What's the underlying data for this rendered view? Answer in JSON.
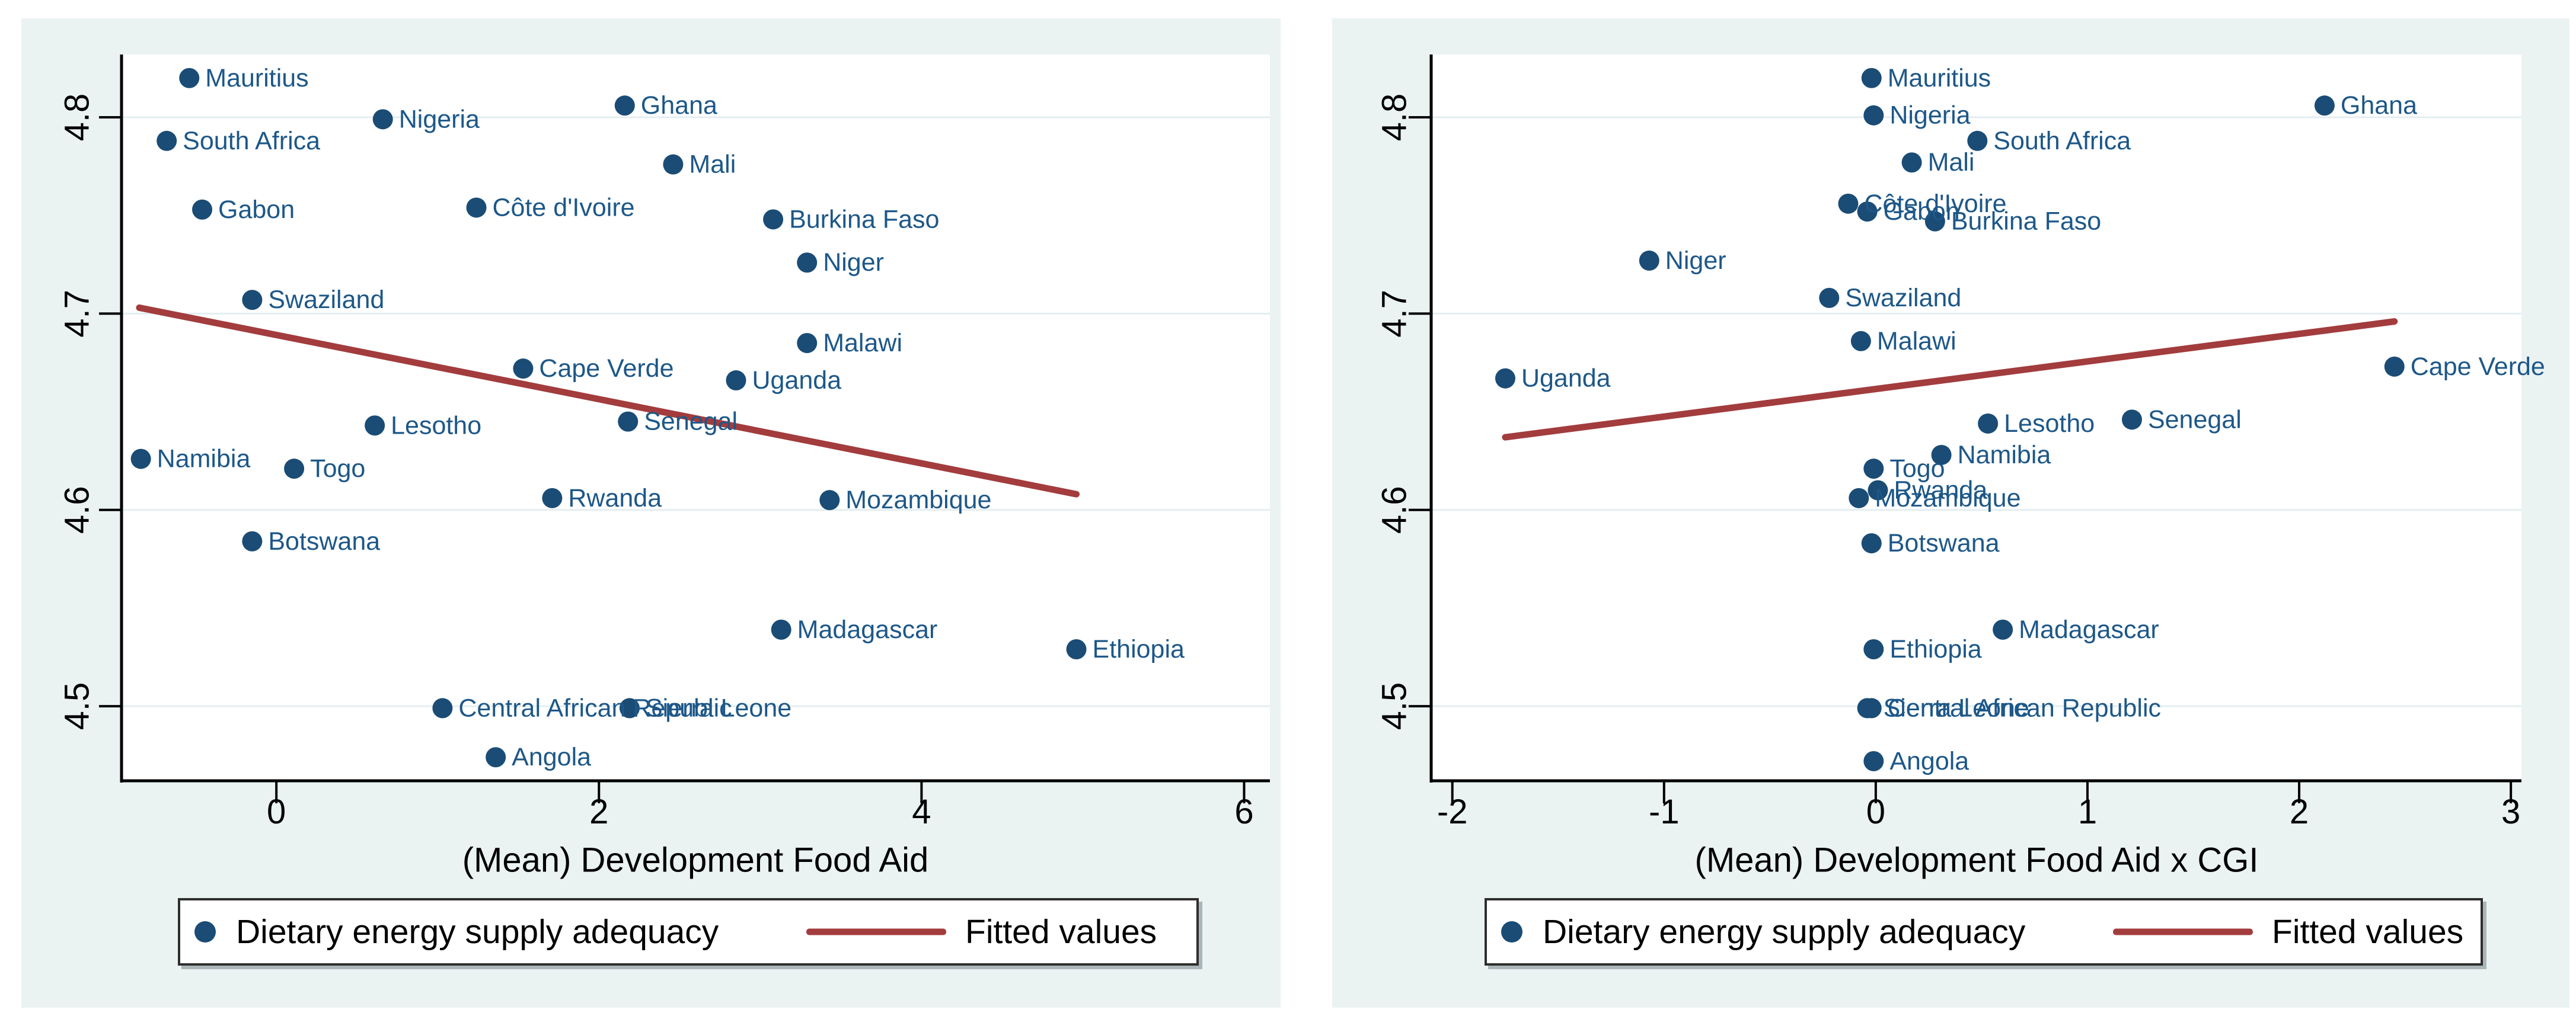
{
  "style": {
    "page_background": "#ffffff",
    "panel_background": "#eaf2f2",
    "plot_background": "#ffffff",
    "grid_color": "#e4eef1",
    "axis_color": "#000000",
    "tick_text_color": "#000000",
    "marker_color": "#1a4c75",
    "point_label_color": "#1d5788",
    "fit_line_color": "#a33c3d"
  },
  "legend": {
    "marker_label": "Dietary energy supply adequacy",
    "line_label": "Fitted values"
  },
  "chart_data": [
    {
      "type": "scatter",
      "title": "",
      "xlabel": "(Mean) Development Food Aid",
      "ylabel": "",
      "xlim": [
        -0.96,
        6.16
      ],
      "ylim": [
        4.462,
        4.832
      ],
      "xtick_values": [
        0,
        2,
        4,
        6
      ],
      "xtick_labels": [
        "0",
        "2",
        "4",
        "6"
      ],
      "ytick_values": [
        4.5,
        4.6,
        4.7,
        4.8
      ],
      "ytick_labels": [
        "4.5",
        "4.6",
        "4.7",
        "4.8"
      ],
      "grid": true,
      "legend_position": "bottom",
      "series_name": "Dietary energy supply adequacy",
      "points": [
        {
          "label": "Mauritius",
          "x": -0.54,
          "y": 4.82
        },
        {
          "label": "Nigeria",
          "x": 0.66,
          "y": 4.799
        },
        {
          "label": "Ghana",
          "x": 2.16,
          "y": 4.806
        },
        {
          "label": "South Africa",
          "x": -0.68,
          "y": 4.788
        },
        {
          "label": "Mali",
          "x": 2.46,
          "y": 4.776
        },
        {
          "label": "Gabon",
          "x": -0.46,
          "y": 4.753
        },
        {
          "label": "Côte d'Ivoire",
          "x": 1.24,
          "y": 4.754
        },
        {
          "label": "Burkina Faso",
          "x": 3.08,
          "y": 4.748
        },
        {
          "label": "Niger",
          "x": 3.29,
          "y": 4.726
        },
        {
          "label": "Swaziland",
          "x": -0.15,
          "y": 4.707
        },
        {
          "label": "Malawi",
          "x": 3.29,
          "y": 4.685
        },
        {
          "label": "Cape Verde",
          "x": 1.53,
          "y": 4.672
        },
        {
          "label": "Uganda",
          "x": 2.85,
          "y": 4.666
        },
        {
          "label": "Lesotho",
          "x": 0.61,
          "y": 4.643
        },
        {
          "label": "Senegal",
          "x": 2.18,
          "y": 4.645
        },
        {
          "label": "Namibia",
          "x": -0.84,
          "y": 4.626
        },
        {
          "label": "Togo",
          "x": 0.11,
          "y": 4.621
        },
        {
          "label": "Rwanda",
          "x": 1.71,
          "y": 4.606
        },
        {
          "label": "Mozambique",
          "x": 3.43,
          "y": 4.605
        },
        {
          "label": "Botswana",
          "x": -0.15,
          "y": 4.584
        },
        {
          "label": "Madagascar",
          "x": 3.13,
          "y": 4.539
        },
        {
          "label": "Ethiopia",
          "x": 4.96,
          "y": 4.529
        },
        {
          "label": "Central African Republic",
          "x": 1.03,
          "y": 4.499
        },
        {
          "label": "Sierra Leone",
          "x": 2.19,
          "y": 4.499
        },
        {
          "label": "Angola",
          "x": 1.36,
          "y": 4.474
        }
      ],
      "fit_line": {
        "name": "Fitted values",
        "x1": -0.85,
        "y1": 4.703,
        "x2": 4.96,
        "y2": 4.608
      }
    },
    {
      "type": "scatter",
      "title": "",
      "xlabel": "(Mean) Development Food Aid x CGI",
      "ylabel": "",
      "xlim": [
        -2.1,
        3.05
      ],
      "ylim": [
        4.462,
        4.832
      ],
      "xtick_values": [
        -2,
        -1,
        0,
        1,
        2,
        3
      ],
      "xtick_labels": [
        "-2",
        "-1",
        "0",
        "1",
        "2",
        "3"
      ],
      "ytick_values": [
        4.5,
        4.6,
        4.7,
        4.8
      ],
      "ytick_labels": [
        "4.5",
        "4.6",
        "4.7",
        "4.8"
      ],
      "grid": true,
      "legend_position": "bottom",
      "series_name": "Dietary energy supply adequacy",
      "points": [
        {
          "label": "Mauritius",
          "x": -0.02,
          "y": 4.82
        },
        {
          "label": "Nigeria",
          "x": -0.01,
          "y": 4.801
        },
        {
          "label": "Ghana",
          "x": 2.12,
          "y": 4.806
        },
        {
          "label": "South Africa",
          "x": 0.48,
          "y": 4.788
        },
        {
          "label": "Mali",
          "x": 0.17,
          "y": 4.777
        },
        {
          "label": "Côte d'Ivoire",
          "x": -0.13,
          "y": 4.756
        },
        {
          "label": "Gabon",
          "x": -0.04,
          "y": 4.752
        },
        {
          "label": "Burkina Faso",
          "x": 0.28,
          "y": 4.747
        },
        {
          "label": "Niger",
          "x": -1.07,
          "y": 4.727
        },
        {
          "label": "Swaziland",
          "x": -0.22,
          "y": 4.708
        },
        {
          "label": "Malawi",
          "x": -0.07,
          "y": 4.686
        },
        {
          "label": "Uganda",
          "x": -1.75,
          "y": 4.667
        },
        {
          "label": "Cape Verde",
          "x": 2.45,
          "y": 4.673
        },
        {
          "label": "Lesotho",
          "x": 0.53,
          "y": 4.644
        },
        {
          "label": "Senegal",
          "x": 1.21,
          "y": 4.646
        },
        {
          "label": "Namibia",
          "x": 0.31,
          "y": 4.628
        },
        {
          "label": "Togo",
          "x": -0.01,
          "y": 4.621
        },
        {
          "label": "Rwanda",
          "x": 0.01,
          "y": 4.61
        },
        {
          "label": "Mozambique",
          "x": -0.08,
          "y": 4.606
        },
        {
          "label": "Botswana",
          "x": -0.02,
          "y": 4.583
        },
        {
          "label": "Madagascar",
          "x": 0.6,
          "y": 4.539
        },
        {
          "label": "Ethiopia",
          "x": -0.01,
          "y": 4.529
        },
        {
          "label": "Sierra Leone",
          "x": -0.04,
          "y": 4.499
        },
        {
          "label": "Central African Republic",
          "x": -0.02,
          "y": 4.499
        },
        {
          "label": "Angola",
          "x": -0.01,
          "y": 4.472
        }
      ],
      "fit_line": {
        "name": "Fitted values",
        "x1": -1.75,
        "y1": 4.637,
        "x2": 2.45,
        "y2": 4.696
      }
    }
  ]
}
